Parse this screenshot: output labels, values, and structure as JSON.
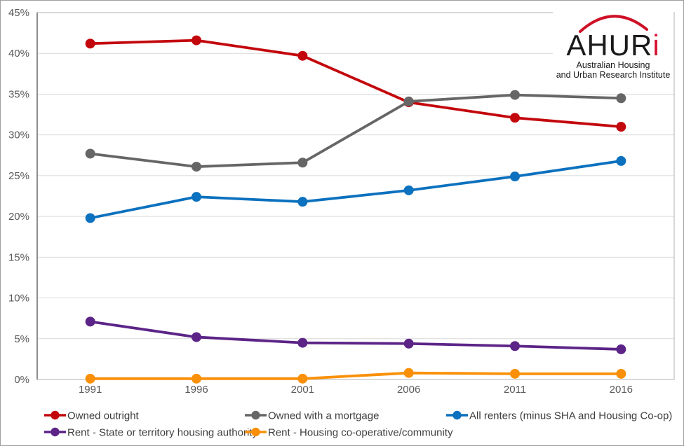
{
  "chart_data": {
    "type": "line",
    "title": "",
    "xlabel": "",
    "ylabel": "",
    "x_labels": [
      "1991",
      "1996",
      "2001",
      "2006",
      "2011",
      "2016"
    ],
    "y_tick_labels": [
      "0%",
      "5%",
      "10%",
      "15%",
      "20%",
      "25%",
      "30%",
      "35%",
      "40%",
      "45%"
    ],
    "ylim": [
      0,
      45
    ],
    "y_tick_step": 5,
    "grid": true,
    "legend_position": "bottom",
    "series": [
      {
        "name": "Owned outright",
        "color": "#c3080d",
        "values": [
          41.2,
          41.6,
          39.7,
          34.0,
          32.1,
          31.0
        ]
      },
      {
        "name": "Owned with a mortgage",
        "color": "#666666",
        "values": [
          27.7,
          26.1,
          26.6,
          34.1,
          34.9,
          34.5
        ]
      },
      {
        "name": "All renters (minus SHA and Housing Co-op)",
        "color": "#0c71be",
        "values": [
          19.8,
          22.4,
          21.8,
          23.2,
          24.9,
          26.8
        ]
      },
      {
        "name": "Rent - State or territory housing authority",
        "color": "#5c2487",
        "values": [
          7.1,
          5.2,
          4.5,
          4.4,
          4.1,
          3.7
        ]
      },
      {
        "name": "Rent - Housing co-operative/community",
        "color": "#fa9008",
        "values": [
          0.1,
          0.1,
          0.1,
          0.8,
          0.7,
          0.7
        ]
      }
    ]
  },
  "logo": {
    "wordmark_black": "AHUR",
    "wordmark_red": "i",
    "tagline_line1": "Australian Housing",
    "tagline_line2": "and Urban Research Institute",
    "arc_color": "#ce1126"
  },
  "style_colors": {
    "gridline": "#d9d9d9",
    "plot_border": "#bfbfbf",
    "axis_line": "#595959",
    "axis_text": "#595959",
    "legend_text": "#3d3d3d"
  }
}
